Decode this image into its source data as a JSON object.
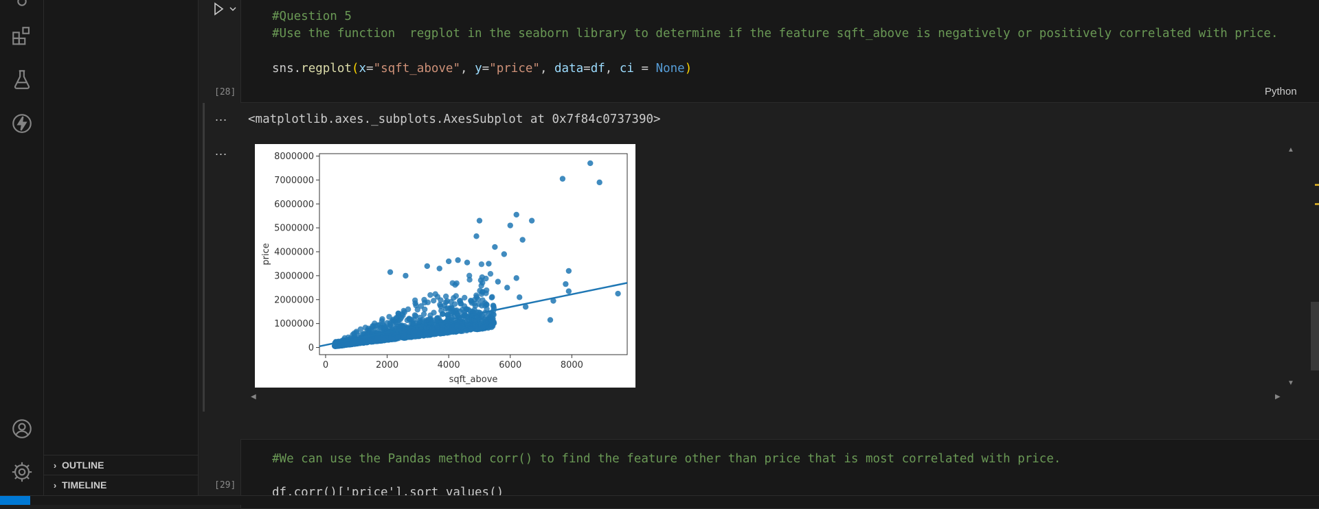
{
  "side_panel": {
    "outline_label": "OUTLINE",
    "timeline_label": "TIMELINE"
  },
  "cell_28": {
    "exec_count": "[28]",
    "language": "Python",
    "comment_1": "#Question 5",
    "comment_2": "#Use the function  regplot in the seaborn library to determine if the feature sqft_above is negatively or positively correlated with price.",
    "code": {
      "sns": "sns",
      "dot": ".",
      "fn": "regplot",
      "open": "(",
      "x_kw": "x",
      "eq1": "=",
      "x_val": "\"sqft_above\"",
      "sep1": ", ",
      "y_kw": "y",
      "eq2": "=",
      "y_val": "\"price\"",
      "sep2": ", ",
      "data_kw": "data",
      "eq3": "=",
      "data_val": "df",
      "sep3": ", ",
      "ci_kw": "ci",
      "eq4": " = ",
      "ci_val": "None",
      "close": ")"
    },
    "output_text": "<matplotlib.axes._subplots.AxesSubplot at 0x7f84c0737390>",
    "output_dots": "..."
  },
  "cell_29": {
    "exec_count": "[29]",
    "comment": "#We can use the Pandas method corr() to find the feature other than price that is most correlated with price.",
    "code_partial": "df.corr()['price'].sort_values()"
  },
  "chart_data": {
    "type": "scatter",
    "xlabel": "sqft_above",
    "ylabel": "price",
    "xlim": [
      -200,
      9800
    ],
    "ylim": [
      -300000,
      8100000
    ],
    "x_ticks": [
      0,
      2000,
      4000,
      6000,
      8000
    ],
    "y_ticks": [
      0,
      1000000,
      2000000,
      3000000,
      4000000,
      5000000,
      6000000,
      7000000,
      8000000
    ],
    "y_tick_labels": [
      "0",
      "1000000",
      "2000000",
      "3000000",
      "4000000",
      "5000000",
      "6000000",
      "7000000",
      "8000000"
    ],
    "x_tick_labels": [
      "0",
      "2000",
      "4000",
      "6000",
      "8000"
    ],
    "regression_line": {
      "x": [
        -200,
        9800
      ],
      "y": [
        50000,
        2700000
      ]
    },
    "outliers": [
      {
        "x": 8600,
        "y": 7700000
      },
      {
        "x": 7700,
        "y": 7050000
      },
      {
        "x": 8900,
        "y": 6900000
      },
      {
        "x": 6200,
        "y": 5550000
      },
      {
        "x": 6700,
        "y": 5300000
      },
      {
        "x": 5000,
        "y": 5300000
      },
      {
        "x": 6000,
        "y": 5100000
      },
      {
        "x": 4900,
        "y": 4650000
      },
      {
        "x": 6400,
        "y": 4500000
      },
      {
        "x": 5500,
        "y": 4200000
      },
      {
        "x": 5800,
        "y": 3900000
      },
      {
        "x": 7900,
        "y": 3200000
      },
      {
        "x": 7800,
        "y": 2650000
      },
      {
        "x": 7900,
        "y": 2350000
      },
      {
        "x": 9500,
        "y": 2250000
      },
      {
        "x": 7400,
        "y": 1950000
      },
      {
        "x": 7300,
        "y": 1150000
      },
      {
        "x": 4600,
        "y": 3550000
      },
      {
        "x": 4300,
        "y": 3650000
      },
      {
        "x": 5300,
        "y": 3500000
      },
      {
        "x": 6200,
        "y": 2900000
      },
      {
        "x": 6500,
        "y": 1700000
      },
      {
        "x": 6300,
        "y": 2100000
      },
      {
        "x": 5900,
        "y": 2500000
      },
      {
        "x": 4000,
        "y": 3600000
      },
      {
        "x": 3300,
        "y": 3400000
      },
      {
        "x": 2100,
        "y": 3150000
      },
      {
        "x": 2600,
        "y": 3000000
      },
      {
        "x": 3700,
        "y": 3300000
      },
      {
        "x": 5600,
        "y": 2750000
      }
    ],
    "dense_cloud": "approx. 21000 points concentrated between sqft_above 300-5500 and price 0-3000000",
    "grid": false,
    "point_color": "#1f77b4"
  },
  "colors": {
    "accent": "#0078d4",
    "comment": "#6a9955",
    "string": "#ce9178",
    "function": "#dcdcaa",
    "variable": "#9cdcfe",
    "keyword": "#569cd6"
  },
  "icons": [
    "extensions-icon",
    "flask-icon",
    "lightning-icon",
    "account-icon",
    "gear-icon",
    "run-icon",
    "chevron-down-icon"
  ]
}
